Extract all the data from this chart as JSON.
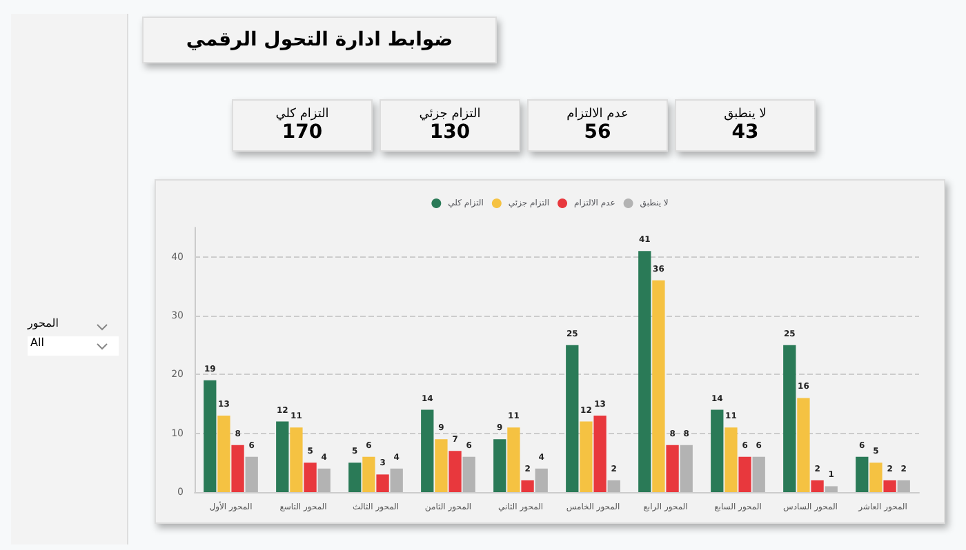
{
  "chart_data": [
    {
      "type": "other",
      "title": "ضوابط ادارة التحول الرقمي",
      "annotations": [
        "التزام كلي",
        "170",
        "التزام جزئي",
        "130",
        "عدم الالتزام",
        "56",
        "لا ينطبق",
        "43"
      ]
    },
    {
      "type": "bar",
      "categories": [
        "المحور الأول",
        "المحور التاسع",
        "المحور الثالث",
        "المحور الثامن",
        "المحور الثاني",
        "المحور الخامس",
        "المحور الرابع",
        "المحور السابع",
        "المحور السادس",
        "المحور العاشر"
      ],
      "series": [
        {
          "name": "التزام كلي",
          "color": "#2a7a57",
          "values": [
            19,
            12,
            5,
            14,
            9,
            25,
            41,
            14,
            25,
            6
          ]
        },
        {
          "name": "التزام جزئي",
          "color": "#f5c242",
          "values": [
            13,
            11,
            6,
            9,
            11,
            12,
            36,
            11,
            16,
            5
          ]
        },
        {
          "name": "عدم الالتزام",
          "color": "#e8383d",
          "values": [
            8,
            5,
            3,
            7,
            2,
            13,
            8,
            6,
            2,
            2
          ]
        },
        {
          "name": "لا ينطبق",
          "color": "#b3b3b3",
          "values": [
            6,
            4,
            4,
            6,
            4,
            2,
            8,
            6,
            1,
            2
          ]
        }
      ],
      "ylim": [
        0,
        45
      ],
      "yticks": [
        0,
        10,
        20,
        30,
        40
      ],
      "grid": "y",
      "legend": "top",
      "data_labels": true
    },
    {
      "type": "other",
      "annotations": [
        "المحور",
        "All"
      ]
    }
  ]
}
